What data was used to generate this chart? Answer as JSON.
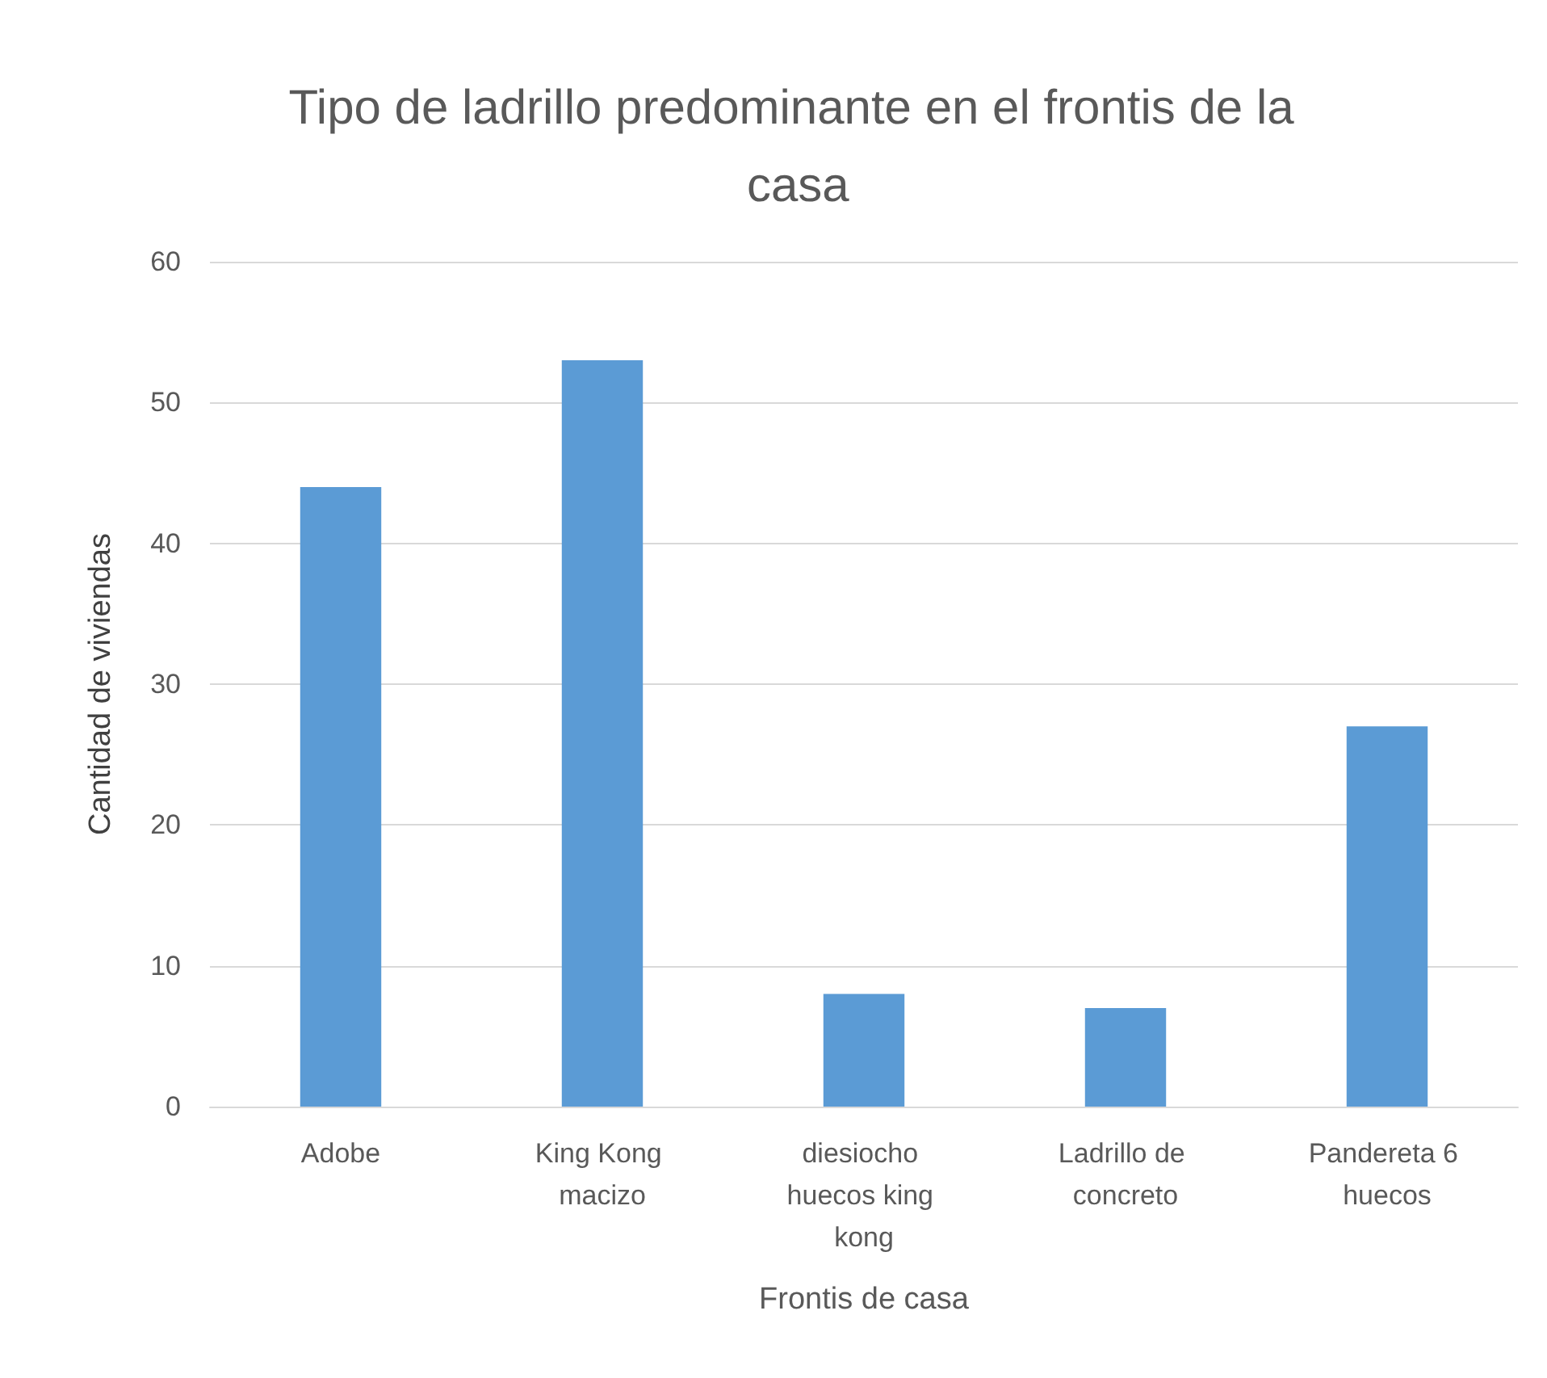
{
  "chart_data": {
    "type": "bar",
    "title": "Tipo de ladrillo predominante en el frontis de la casa",
    "xlabel": "Frontis de casa",
    "ylabel": "Cantidad de viviendas",
    "categories": [
      "Adobe",
      "King Kong macizo",
      "diesiocho huecos king kong",
      "Ladrillo de concreto",
      "Pandereta 6 huecos"
    ],
    "values": [
      44,
      53,
      8,
      7,
      27
    ],
    "color": "#5b9bd5",
    "ylim": [
      0,
      60
    ],
    "yticks": [
      0,
      10,
      20,
      30,
      40,
      50,
      60
    ],
    "grid": "y"
  }
}
